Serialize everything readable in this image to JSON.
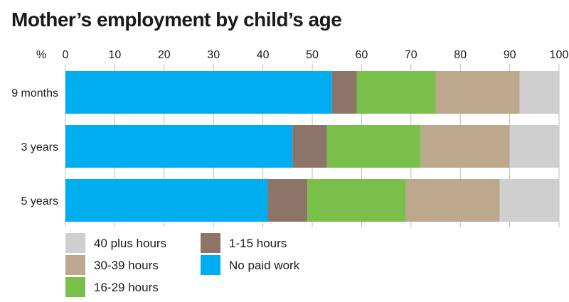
{
  "chart_data": {
    "type": "bar",
    "orientation": "horizontal",
    "stacked": true,
    "title": "Mother’s employment by child’s age",
    "unit_label": "%",
    "xlim": [
      0,
      100
    ],
    "x_ticks": [
      0,
      10,
      20,
      30,
      40,
      50,
      60,
      70,
      80,
      90,
      100
    ],
    "grid": true,
    "legend_position": "bottom",
    "categories": [
      "9 months",
      "3 years",
      "5 years"
    ],
    "series": [
      {
        "name": "No paid work",
        "color": "#00aeef",
        "values": [
          54,
          46,
          41
        ]
      },
      {
        "name": "1-15 hours",
        "color": "#8d7468",
        "values": [
          5,
          7,
          8
        ]
      },
      {
        "name": "16-29 hours",
        "color": "#7bbf4b",
        "values": [
          16,
          19,
          20
        ]
      },
      {
        "name": "30-39 hours",
        "color": "#bca88c",
        "values": [
          17,
          18,
          19
        ]
      },
      {
        "name": "40 plus hours",
        "color": "#cfcfcf",
        "values": [
          8,
          10,
          12
        ]
      }
    ],
    "legend_order": [
      "40 plus hours",
      "1-15 hours",
      "30-39 hours",
      "No paid work",
      "16-29 hours"
    ]
  }
}
